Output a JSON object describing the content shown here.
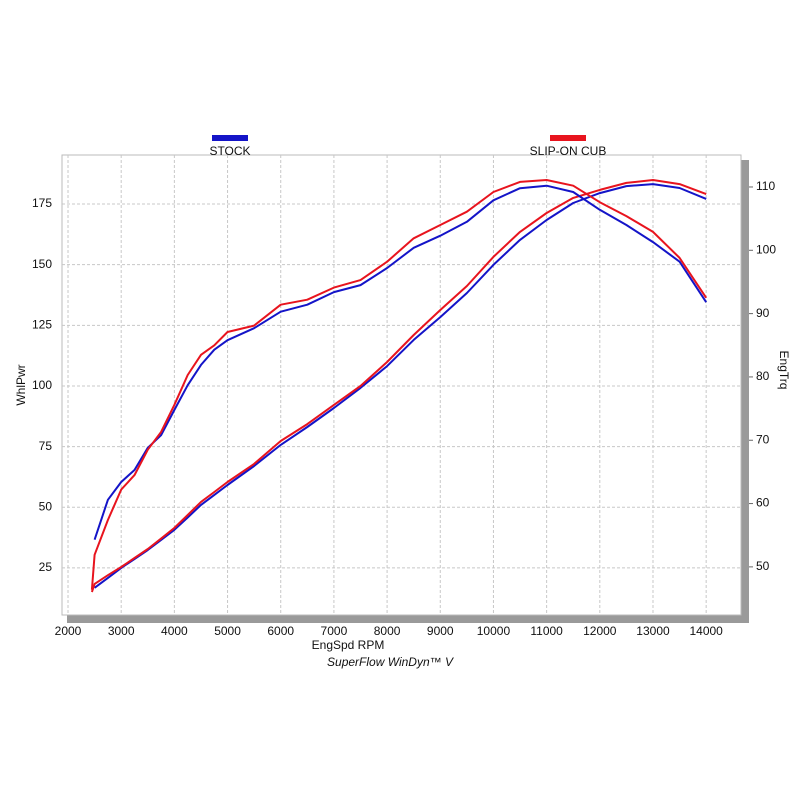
{
  "chart_data": {
    "type": "line",
    "legend": [
      "STOCK",
      "SLIP-ON CUB"
    ],
    "x_label": "EngSpd  RPM",
    "y_label": "WhlPwr",
    "y2_label": "EngTrq",
    "footer": "SuperFlow WinDyn™ V",
    "x": [
      2450,
      2500,
      2750,
      3000,
      3250,
      3500,
      3750,
      4000,
      4250,
      4500,
      4750,
      5000,
      5500,
      6000,
      6500,
      7000,
      7500,
      8000,
      8500,
      9000,
      9500,
      10000,
      10500,
      11000,
      11500,
      12000,
      12500,
      13000,
      13500,
      14000
    ],
    "series": [
      {
        "color": "#1414c8",
        "values": [
          null,
          16.8,
          20.9,
          25,
          28.7,
          32.4,
          36.5,
          40.7,
          45.8,
          51,
          55.1,
          59.2,
          67,
          75.7,
          83.1,
          90.9,
          99.2,
          108.2,
          119,
          128.4,
          138.3,
          149.9,
          160.2,
          168.4,
          175.4,
          179.5,
          182.4,
          183.2,
          181.6,
          177.1
        ]
      },
      {
        "color": "#e8141e",
        "values": [
          15.1,
          18.4,
          22,
          25.4,
          29.1,
          32.8,
          37.1,
          41.5,
          46.8,
          52.2,
          56.3,
          60.4,
          67.9,
          77.3,
          84.3,
          92.2,
          100,
          109.9,
          121,
          131.3,
          141.2,
          153.2,
          163.5,
          171.3,
          177.5,
          180.8,
          183.7,
          184.9,
          183.2,
          179.1
        ]
      },
      {
        "color": "#1414c8",
        "axis": "y2",
        "values": [
          null,
          54.3,
          60.6,
          63.4,
          65.3,
          68.8,
          70.8,
          74.8,
          78.7,
          81.9,
          84.3,
          85.8,
          87.7,
          90.3,
          91.4,
          93.4,
          94.5,
          97.2,
          100.4,
          102.3,
          104.5,
          107.9,
          109.8,
          110.2,
          109.2,
          106.4,
          104,
          101.3,
          98.2,
          91.8
        ]
      },
      {
        "color": "#e8141e",
        "axis": "y2",
        "values": [
          46.4,
          51.9,
          57.4,
          62.2,
          64.5,
          68.5,
          71.3,
          75.6,
          80.3,
          83.5,
          85,
          87.1,
          88.1,
          91.4,
          92.2,
          94.1,
          95.3,
          98.2,
          101.9,
          104,
          106.1,
          109.2,
          110.8,
          111.1,
          110.2,
          107.6,
          105.4,
          102.9,
          98.8,
          92.5
        ]
      }
    ],
    "xlim": [
      1887,
      14655
    ],
    "xticks": [
      2000,
      3000,
      4000,
      5000,
      6000,
      7000,
      8000,
      9000,
      10000,
      11000,
      12000,
      13000,
      14000
    ],
    "ylim": [
      5.6,
      195.2
    ],
    "yticks": [
      25,
      50,
      75,
      100,
      125,
      150,
      175
    ],
    "y2lim": [
      42.4,
      115.05
    ],
    "y2ticks": [
      50,
      60,
      70,
      80,
      90,
      100,
      110
    ],
    "grid": true
  }
}
